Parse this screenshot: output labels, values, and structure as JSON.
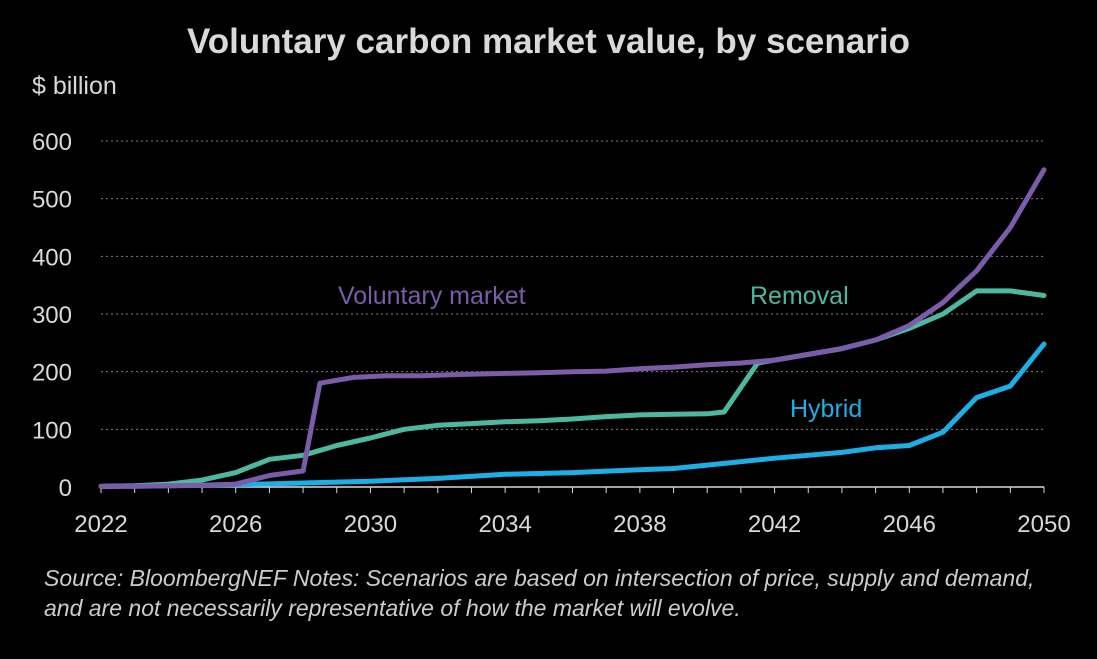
{
  "chart_data": {
    "type": "line",
    "title": "Voluntary carbon market value, by scenario",
    "ylabel": "$ billion",
    "xlabel": "",
    "ylim": [
      0,
      600
    ],
    "xlim": [
      2022,
      2050
    ],
    "x_ticks": [
      "2022",
      "2026",
      "2030",
      "2034",
      "2038",
      "2042",
      "2046",
      "2050"
    ],
    "y_ticks": [
      "0",
      "100",
      "200",
      "300",
      "400",
      "500",
      "600"
    ],
    "grid": "horizontal dashed",
    "series": [
      {
        "name": "Voluntary market",
        "color": "#7a5ca8",
        "x": [
          2022,
          2023,
          2024,
          2025,
          2026,
          2027,
          2028,
          2028.5,
          2029.5,
          2030.5,
          2031.5,
          2032.5,
          2034,
          2035,
          2036,
          2037,
          2038,
          2039,
          2040,
          2041,
          2042,
          2043,
          2044,
          2045,
          2046,
          2047,
          2048,
          2049,
          2050
        ],
        "y": [
          1,
          1,
          2,
          3,
          5,
          20,
          28,
          180,
          190,
          193,
          193,
          195,
          197,
          198,
          200,
          201,
          205,
          208,
          212,
          215,
          220,
          230,
          240,
          255,
          280,
          320,
          375,
          450,
          550
        ]
      },
      {
        "name": "Removal",
        "color": "#4db8a0",
        "x": [
          2022,
          2023,
          2024,
          2025,
          2026,
          2027,
          2028,
          2029,
          2030,
          2031,
          2032,
          2033,
          2034,
          2035,
          2036,
          2037,
          2038,
          2039,
          2040,
          2040.5,
          2041.5,
          2042,
          2043,
          2044,
          2045,
          2046,
          2047,
          2048,
          2049,
          2050
        ],
        "y": [
          1,
          2,
          5,
          12,
          25,
          48,
          55,
          72,
          85,
          100,
          107,
          110,
          113,
          115,
          118,
          122,
          125,
          126,
          127,
          130,
          215,
          220,
          230,
          240,
          255,
          275,
          300,
          340,
          340,
          332
        ]
      },
      {
        "name": "Hybrid",
        "color": "#1eaee6",
        "x": [
          2022,
          2024,
          2026,
          2028,
          2030,
          2032,
          2034,
          2036,
          2038,
          2039,
          2040,
          2042,
          2044,
          2045,
          2046,
          2047,
          2048,
          2049,
          2050
        ],
        "y": [
          1,
          2,
          4,
          7,
          10,
          15,
          22,
          25,
          30,
          32,
          38,
          50,
          60,
          68,
          72,
          95,
          155,
          175,
          248
        ]
      }
    ],
    "annotations": [
      {
        "text": "Voluntary market",
        "color": "#7a5ca8"
      },
      {
        "text": "Removal",
        "color": "#4db8a0"
      },
      {
        "text": "Hybrid",
        "color": "#1eaee6"
      }
    ]
  },
  "footer": {
    "source": "Source: BloombergNEF   Notes: Scenarios are based on intersection of price, supply and demand, and are not necessarily representative of how the market will evolve."
  }
}
